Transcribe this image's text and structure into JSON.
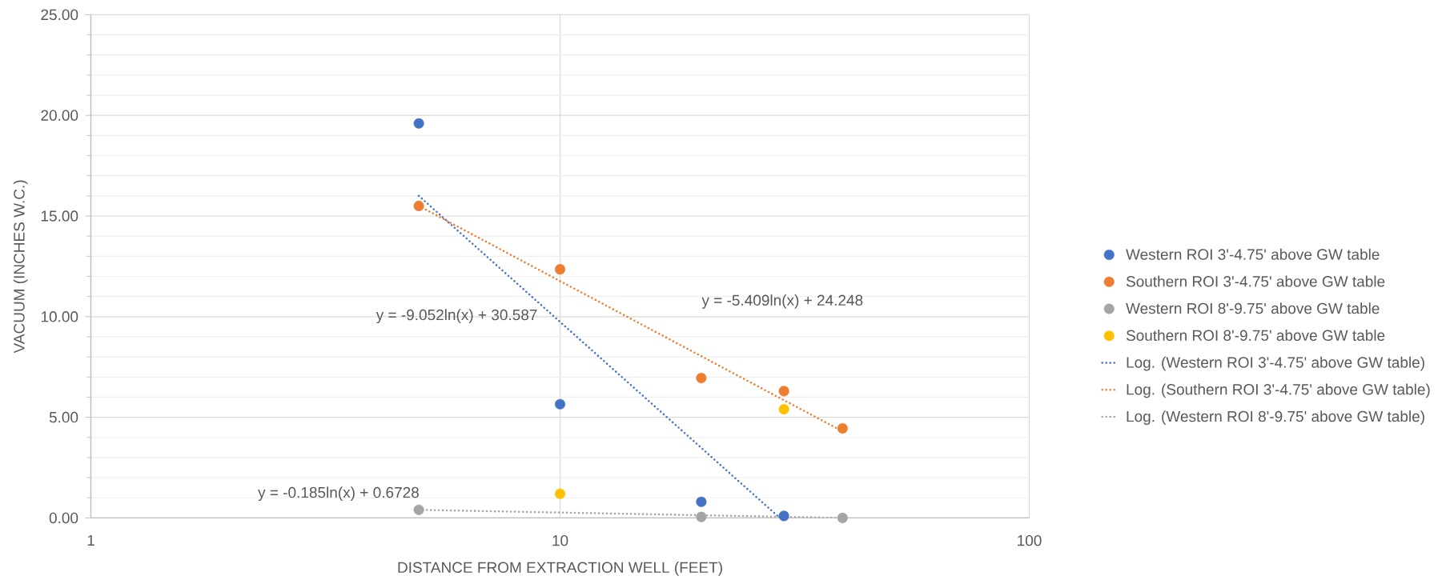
{
  "chart_data": {
    "type": "scatter",
    "xlabel": "DISTANCE FROM EXTRACTION WELL (FEET)",
    "ylabel": "VACUUM (INCHES W.C.)",
    "log": "x",
    "xlim": [
      1,
      100
    ],
    "xticks": [
      1,
      10,
      100
    ],
    "ylim": [
      0,
      25
    ],
    "yticks": [
      {
        "value": 0,
        "label": "0.00"
      },
      {
        "value": 5,
        "label": "5.00"
      },
      {
        "value": 10,
        "label": "10.00"
      },
      {
        "value": 15,
        "label": "15.00"
      },
      {
        "value": 20,
        "label": "20.00"
      },
      {
        "value": 25,
        "label": "25.00"
      }
    ],
    "grid": true,
    "legend": "right",
    "marker": "circle",
    "series": [
      {
        "name": "Western ROI 3'-4.75' above GW table",
        "color": "#4472c4",
        "x": [
          5,
          10,
          20,
          30
        ],
        "values": [
          19.6,
          5.65,
          0.8,
          0.1
        ]
      },
      {
        "name": "Southern ROI 3'-4.75' above GW table",
        "color": "#ed7d31",
        "x": [
          5,
          10,
          20,
          30,
          40
        ],
        "values": [
          15.5,
          12.35,
          6.95,
          6.3,
          4.45
        ]
      },
      {
        "name": "Western ROI 8'-9.75' above GW table",
        "color": "#a5a5a5",
        "x": [
          5,
          20,
          40
        ],
        "values": [
          0.4,
          0.05,
          0
        ]
      },
      {
        "name": "Southern ROI 8'-9.75' above GW table",
        "color": "#ffc000",
        "x": [
          10,
          30
        ],
        "values": [
          1.2,
          5.4
        ]
      },
      {
        "name": "Log. (Western ROI 3'-4.75' above GW table)",
        "type": "line",
        "line_style": "dotted",
        "marker": "none",
        "color": "#4472c4",
        "x": [
          5,
          29.4
        ],
        "values": [
          16.0,
          0
        ]
      },
      {
        "name": "Log. (Southern ROI 3'-4.75' above GW table)",
        "type": "line",
        "line_style": "dotted",
        "marker": "none",
        "color": "#ed7d31",
        "x": [
          5,
          40
        ],
        "values": [
          15.5,
          4.3
        ]
      },
      {
        "name": "Log. (Western ROI 8'-9.75' above GW table)",
        "type": "line",
        "line_style": "dotted",
        "marker": "none",
        "color": "#a5a5a5",
        "x": [
          5,
          40
        ],
        "values": [
          0.4,
          0
        ]
      }
    ],
    "annotations": [
      "y = -9.052ln(x) + 30.587",
      "y = -5.409ln(x) + 24.248",
      "y = -0.185ln(x) + 0.6728"
    ]
  }
}
